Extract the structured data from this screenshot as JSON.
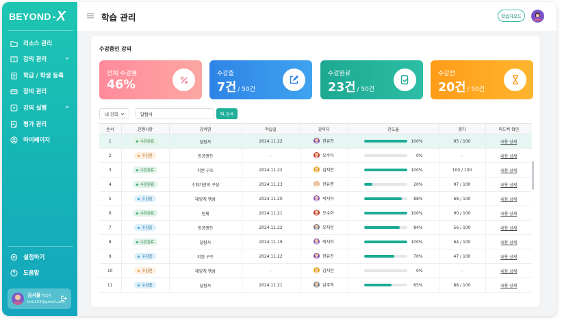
{
  "app": {
    "logo_text": "BEYOND",
    "logo_mark": "X"
  },
  "sidebar": {
    "items": [
      {
        "label": "리소스 관리",
        "icon": "folder-icon"
      },
      {
        "label": "강의 관리",
        "icon": "book-icon",
        "expandable": true
      },
      {
        "label": "학급 / 학생 등록",
        "icon": "clipboard-icon"
      },
      {
        "label": "장비 관리",
        "icon": "device-icon"
      },
      {
        "label": "강의 실행",
        "icon": "play-icon",
        "expandable": true
      },
      {
        "label": "평가 관리",
        "icon": "evaluation-icon"
      },
      {
        "label": "마이페이지",
        "icon": "user-circle-icon"
      }
    ],
    "bottom_items": [
      {
        "label": "설정하기",
        "icon": "settings-icon"
      },
      {
        "label": "도움말",
        "icon": "help-icon"
      }
    ],
    "user": {
      "name": "김서율",
      "role": "학습자",
      "email": "kim123@gmail.com"
    }
  },
  "header": {
    "title": "학습 관리",
    "mode_button": "학습자모드"
  },
  "main": {
    "section_title": "수강중인 강의",
    "stats": [
      {
        "label": "전체 수강률",
        "value": "46%",
        "total": "",
        "color_from": "#ff8f9b",
        "color_to": "#fda5a2",
        "icon": "percent-icon"
      },
      {
        "label": "수강중",
        "value": "7건",
        "total": "/ 50건",
        "color_from": "#2f86e6",
        "color_to": "#41a3f0",
        "icon": "edit-icon"
      },
      {
        "label": "수강완료",
        "value": "23건",
        "total": "/ 50건",
        "color_from": "#1fa994",
        "color_to": "#2bbfa4",
        "icon": "document-check-icon"
      },
      {
        "label": "수강전",
        "value": "20건",
        "total": "/ 50건",
        "color_from": "#ff9d1a",
        "color_to": "#ffb42e",
        "icon": "hourglass-icon"
      }
    ],
    "filter": {
      "selected": "내 강의",
      "search_value": "달탐사",
      "search_button": "검색"
    },
    "table": {
      "headers": [
        "순서",
        "진행사항",
        "강의명",
        "학습일",
        "강의자",
        "진도율",
        "평가",
        "피드백 확인"
      ],
      "rows": [
        {
          "no": "1",
          "status": "수강완료",
          "kind": "done",
          "course": "달탐사",
          "date": "2024.11.22",
          "lecturer": "한유진",
          "progress": 100,
          "pct": "100%",
          "score": "95 / 100",
          "feedback": "내용 상세",
          "av": "#7c4bb0"
        },
        {
          "no": "2",
          "status": "수강전",
          "kind": "pre",
          "course": "항공엔진",
          "date": "-",
          "lecturer": "오수아",
          "progress": 0,
          "pct": "0%",
          "score": "-",
          "feedback": "내용 상세",
          "av": "#c1392b"
        },
        {
          "no": "3",
          "status": "수강완료",
          "kind": "done",
          "course": "지권 구조",
          "date": "2024.11.22",
          "lecturer": "김지안",
          "progress": 100,
          "pct": "100%",
          "score": "100 / 100",
          "feedback": "내용 상세",
          "av": "#e3a21a"
        },
        {
          "no": "4",
          "status": "수강완료",
          "kind": "done",
          "course": "소화기관의 구성",
          "date": "2024.11.23",
          "lecturer": "한유준",
          "progress": 20,
          "pct": "20%",
          "score": "97 / 100",
          "feedback": "내용 상세",
          "av": "#e5b88d"
        },
        {
          "no": "5",
          "status": "수강중",
          "kind": "prog",
          "course": "태양계 행성",
          "date": "2024.11.20",
          "lecturer": "박서아",
          "progress": 88,
          "pct": "88%",
          "score": "68 / 100",
          "feedback": "내용 상세",
          "av": "#8a57c2"
        },
        {
          "no": "6",
          "status": "수강완료",
          "kind": "done",
          "course": "민체",
          "date": "2024.11.21",
          "lecturer": "오수아",
          "progress": 100,
          "pct": "100%",
          "score": "90 / 100",
          "feedback": "내용 상세",
          "av": "#c1392b"
        },
        {
          "no": "7",
          "status": "수강중",
          "kind": "prog",
          "course": "항공엔진",
          "date": "2024.11.22",
          "lecturer": "오지운",
          "progress": 84,
          "pct": "84%",
          "score": "56 / 100",
          "feedback": "내용 상세",
          "av": "#6d7b89"
        },
        {
          "no": "8",
          "status": "수강완료",
          "kind": "done",
          "course": "달탐사",
          "date": "2024.11.19",
          "lecturer": "박서아",
          "progress": 100,
          "pct": "100%",
          "score": "64 / 100",
          "feedback": "내용 상세",
          "av": "#8a57c2"
        },
        {
          "no": "9",
          "status": "수강중",
          "kind": "prog",
          "course": "지권 구조",
          "date": "2024.11.22",
          "lecturer": "한유진",
          "progress": 70,
          "pct": "70%",
          "score": "47 / 100",
          "feedback": "내용 상세",
          "av": "#7c4bb0"
        },
        {
          "no": "10",
          "status": "수강전",
          "kind": "pre",
          "course": "태양계 행성",
          "date": "-",
          "lecturer": "김지안",
          "progress": 0,
          "pct": "0%",
          "score": "-",
          "feedback": "내용 상세",
          "av": "#e3a21a"
        },
        {
          "no": "11",
          "status": "수강중",
          "kind": "prog",
          "course": "달탐사",
          "date": "2024.11.21",
          "lecturer": "남주혁",
          "progress": 65,
          "pct": "65%",
          "score": "88 / 100",
          "feedback": "내용 상세",
          "av": "#6d7b89"
        }
      ]
    }
  }
}
